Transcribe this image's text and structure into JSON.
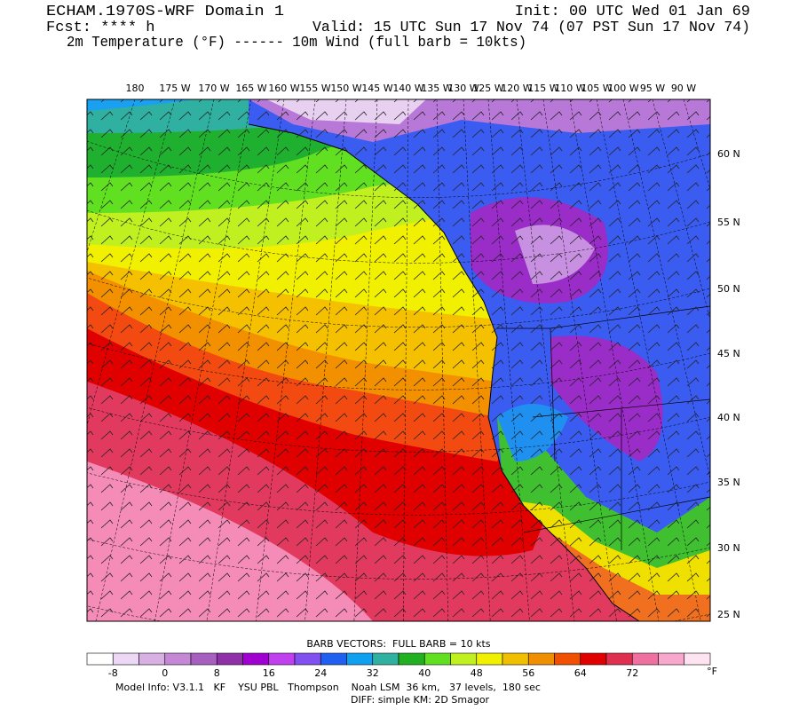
{
  "header": {
    "title": "ECHAM.1970S-WRF Domain 1",
    "init": "Init: 00 UTC Wed 01 Jan 69",
    "forecast": "Fcst: **** h",
    "valid": "Valid: 15 UTC Sun 17 Nov 74 (07 PST Sun 17 Nov 74)",
    "fields": "2m Temperature (°F) ------ 10m Wind (full barb = 10kts)"
  },
  "map": {
    "longitude_labels": [
      "180",
      "175 W",
      "170 W",
      "165 W",
      "160 W",
      "155 W",
      "150 W",
      "145 W",
      "140 W",
      "135 W",
      "130 W",
      "125 W",
      "120 W",
      "115 W",
      "110 W",
      "105 W",
      "100 W",
      "95 W",
      "90 W"
    ],
    "latitude_labels": [
      "60 N",
      "55 N",
      "50 N",
      "45 N",
      "40 N",
      "35 N",
      "30 N",
      "25 N"
    ]
  },
  "colorbar": {
    "title": "BARB VECTORS:  FULL BARB = 10 kts",
    "labels": [
      "-8",
      "0",
      "8",
      "16",
      "24",
      "32",
      "40",
      "48",
      "56",
      "64",
      "72"
    ],
    "unit": "°F"
  },
  "footer": {
    "model_info": "Model Info: V3.1.1   KF    YSU PBL   Thompson    Noah LSM  36 km,   37 levels,  180 sec",
    "diff": "DIFF: simple KM: 2D Smagor"
  }
}
